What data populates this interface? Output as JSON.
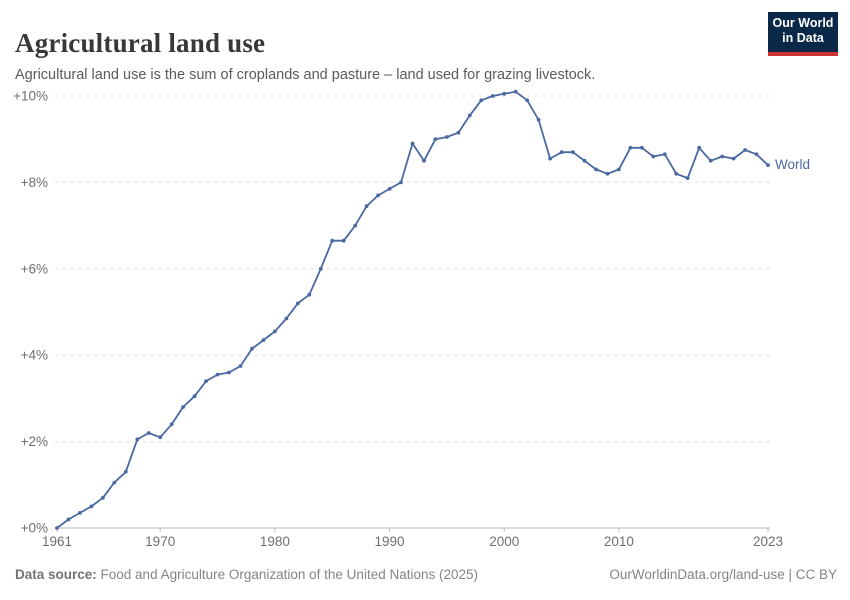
{
  "header": {
    "title": "Agricultural land use",
    "subtitle": "Agricultural land use is the sum of croplands and pasture – land used for grazing livestock.",
    "logo": {
      "line1": "Our World",
      "line2": "in Data"
    }
  },
  "chart_data": {
    "type": "line",
    "title": "Agricultural land use",
    "xlabel": "",
    "ylabel": "",
    "xlim": [
      1961,
      2023
    ],
    "ylim": [
      0,
      10.5
    ],
    "grid": "horizontal-dashed",
    "legend_position": "end-of-line-label",
    "x_ticks": [
      1961,
      1970,
      1980,
      1990,
      2000,
      2010,
      2023
    ],
    "y_ticks": [
      0,
      2,
      4,
      6,
      8,
      10
    ],
    "y_tick_labels": [
      "+0%",
      "+2%",
      "+4%",
      "+6%",
      "+8%",
      "+10%"
    ],
    "series": [
      {
        "name": "World",
        "color": "#4a69a1",
        "x": [
          1961,
          1962,
          1963,
          1964,
          1965,
          1966,
          1967,
          1968,
          1969,
          1970,
          1971,
          1972,
          1973,
          1974,
          1975,
          1976,
          1977,
          1978,
          1979,
          1980,
          1981,
          1982,
          1983,
          1984,
          1985,
          1986,
          1987,
          1988,
          1989,
          1990,
          1991,
          1992,
          1993,
          1994,
          1995,
          1996,
          1997,
          1998,
          1999,
          2000,
          2001,
          2002,
          2003,
          2004,
          2005,
          2006,
          2007,
          2008,
          2009,
          2010,
          2011,
          2012,
          2013,
          2014,
          2015,
          2016,
          2017,
          2018,
          2019,
          2020,
          2021,
          2022,
          2023
        ],
        "values": [
          0.0,
          0.2,
          0.35,
          0.5,
          0.7,
          1.05,
          1.3,
          2.05,
          2.2,
          2.1,
          2.4,
          2.8,
          3.05,
          3.4,
          3.55,
          3.6,
          3.75,
          4.15,
          4.35,
          4.55,
          4.85,
          5.2,
          5.4,
          6.0,
          6.65,
          6.65,
          7.0,
          7.45,
          7.7,
          7.85,
          8.0,
          8.9,
          8.5,
          9.0,
          9.05,
          9.15,
          9.55,
          9.9,
          10.0,
          10.05,
          10.1,
          9.9,
          9.45,
          8.55,
          8.7,
          8.7,
          8.5,
          8.3,
          8.2,
          8.3,
          8.8,
          8.8,
          8.6,
          8.65,
          8.2,
          8.1,
          8.8,
          8.5,
          8.6,
          8.55,
          8.75,
          8.65,
          8.4
        ]
      }
    ]
  },
  "footer": {
    "datasource_label": "Data source:",
    "datasource_text": " Food and Agriculture Organization of the United Nations (2025)",
    "attribution": "OurWorldinData.org/land-use | CC BY"
  },
  "colors": {
    "line": "#4a69a1",
    "logo_navy": "#0a2847",
    "logo_red": "#cc3233",
    "gridline": "#dcdcdc",
    "axis": "#b9b9b9",
    "tick_text": "#6e6e6e",
    "footer_text": "#858585",
    "title_text": "#383838",
    "subtitle_text": "#5b5b5b"
  }
}
